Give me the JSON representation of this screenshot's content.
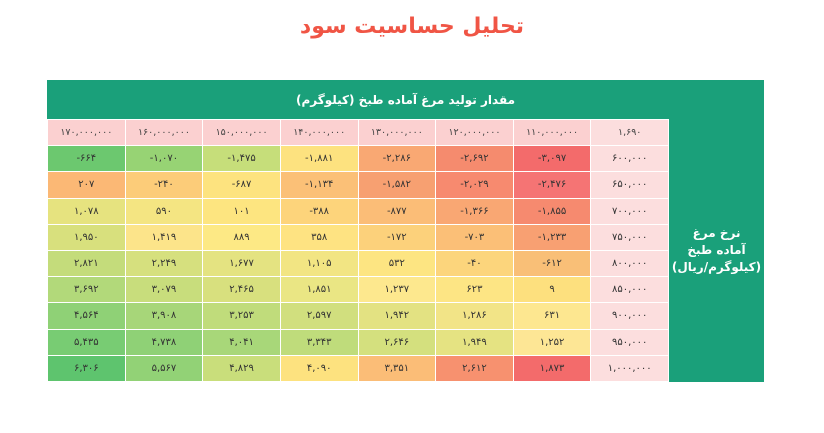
{
  "title": "تحلیل حساسیت سود",
  "header": "مقدار تولید مرغ آماده طبخ (کیلوگرم)",
  "side_label": [
    "نرخ مرغ",
    "آماده طبخ",
    "(کیلوگرم/ریال)"
  ],
  "corner": "۱,۶۹۰",
  "columns": [
    "۱۱۰,۰۰۰,۰۰۰",
    "۱۲۰,۰۰۰,۰۰۰",
    "۱۳۰,۰۰۰,۰۰۰",
    "۱۴۰,۰۰۰,۰۰۰",
    "۱۵۰,۰۰۰,۰۰۰",
    "۱۶۰,۰۰۰,۰۰۰",
    "۱۷۰,۰۰۰,۰۰۰"
  ],
  "rows": [
    {
      "price": "۶۰۰,۰۰۰",
      "values": [
        "-۳,۰۹۷",
        "-۲,۶۹۲",
        "-۲,۲۸۶",
        "-۱,۸۸۱",
        "-۱,۴۷۵",
        "-۱,۰۷۰",
        "-۶۶۴"
      ],
      "colors": [
        "#f36b6b",
        "#f58b6e",
        "#f9a873",
        "#fde27f",
        "#c6de7a",
        "#97d374",
        "#6cc86f"
      ]
    },
    {
      "price": "۶۵۰,۰۰۰",
      "values": [
        "-۲,۴۷۶",
        "-۲,۰۲۹",
        "-۱,۵۸۲",
        "-۱,۱۳۴",
        "-۶۸۷",
        "-۲۴۰",
        "۲۰۷"
      ],
      "colors": [
        "#f57474",
        "#f78a6f",
        "#f7a071",
        "#fbc077",
        "#fde37f",
        "#fccc79",
        "#fbb875"
      ]
    },
    {
      "price": "۷۰۰,۰۰۰",
      "values": [
        "-۱,۸۵۵",
        "-۱,۳۶۶",
        "-۸۷۷",
        "-۳۸۸",
        "۱۰۱",
        "۵۹۰",
        "۱,۰۷۸"
      ],
      "colors": [
        "#f68a6f",
        "#f9a773",
        "#fbbd77",
        "#fdd47b",
        "#fde580",
        "#f4e582",
        "#e6e37f"
      ]
    },
    {
      "price": "۷۵۰,۰۰۰",
      "values": [
        "-۱,۲۳۳",
        "-۷۰۳",
        "-۱۷۲",
        "۳۵۸",
        "۸۸۹",
        "۱,۴۱۹",
        "۱,۹۵۰"
      ],
      "colors": [
        "#f8a072",
        "#fbbf77",
        "#fcd17b",
        "#fee382",
        "#fde985",
        "#fce48a",
        "#d8e07d"
      ]
    },
    {
      "price": "۸۰۰,۰۰۰",
      "values": [
        "-۶۱۲",
        "-۴۰",
        "۵۳۲",
        "۱,۱۰۵",
        "۱,۶۷۷",
        "۲,۲۴۹",
        "۲,۸۲۱"
      ],
      "colors": [
        "#f9bf77",
        "#fcd57c",
        "#fde582",
        "#f2e583",
        "#e4e381",
        "#d6e07e",
        "#c4dc7b"
      ]
    },
    {
      "price": "۸۵۰,۰۰۰",
      "values": [
        "۹",
        "۶۲۳",
        "۱,۲۳۷",
        "۱,۸۵۱",
        "۲,۴۶۵",
        "۳,۰۷۹",
        "۳,۶۹۲"
      ],
      "colors": [
        "#fde07e",
        "#fde584",
        "#fde88e",
        "#eae684",
        "#d8e07e",
        "#c8dd7c",
        "#b2d97a"
      ]
    },
    {
      "price": "۹۰۰,۰۰۰",
      "values": [
        "۶۳۱",
        "۱,۲۸۶",
        "۱,۹۴۲",
        "۲,۵۹۷",
        "۳,۲۵۳",
        "۳,۹۰۸",
        "۴,۵۶۴"
      ],
      "colors": [
        "#fde790",
        "#f2e487",
        "#e3e282",
        "#d1df7e",
        "#c0dc7b",
        "#a7d679",
        "#8fd176"
      ]
    },
    {
      "price": "۹۵۰,۰۰۰",
      "values": [
        "۱,۲۵۲",
        "۱,۹۴۹",
        "۲,۶۴۶",
        "۳,۳۴۳",
        "۴,۰۴۱",
        "۴,۷۳۸",
        "۵,۴۳۵"
      ],
      "colors": [
        "#fde695",
        "#e5e382",
        "#d4e07e",
        "#bfdc7b",
        "#a8d779",
        "#8fd176",
        "#78cc73"
      ]
    },
    {
      "price": "۱,۰۰۰,۰۰۰",
      "values": [
        "۱,۸۷۳",
        "۲,۶۱۲",
        "۳,۳۵۱",
        "۴,۰۹۰",
        "۴,۸۲۹",
        "۵,۵۶۷",
        "۶,۳۰۶"
      ],
      "colors": [
        "#f36b6b",
        "#f7916f",
        "#fbbd77",
        "#fde27f",
        "#c9de7b",
        "#92d276",
        "#5ec46e"
      ]
    }
  ],
  "header_row_color": "#fbd0d0",
  "price_col_color": "#fcdede",
  "frame_color": "#1aa07a",
  "title_color": "#f05545"
}
